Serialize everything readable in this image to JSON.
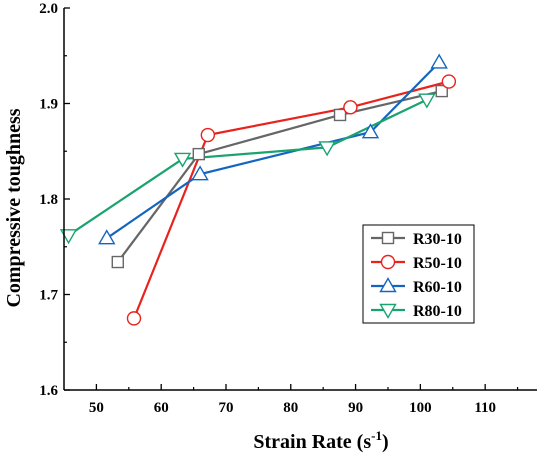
{
  "chart_data": {
    "type": "line",
    "title": "",
    "xlabel": "Strain Rate (s",
    "xlabel_sup": "-1",
    "xlabel_tail": ")",
    "ylabel": "Compressive toughness",
    "xlim": [
      45,
      118
    ],
    "ylim": [
      1.6,
      2.0
    ],
    "xticks": [
      50,
      60,
      70,
      80,
      90,
      100,
      110
    ],
    "yticks": [
      1.6,
      1.7,
      1.8,
      1.9,
      2.0
    ],
    "xtick_labels": [
      "50",
      "60",
      "70",
      "80",
      "90",
      "100",
      "110"
    ],
    "ytick_labels": [
      "1.6",
      "1.7",
      "1.8",
      "1.9",
      "2.0"
    ],
    "grid": false,
    "legend_position": "lower-right",
    "series": [
      {
        "name": "R30-10",
        "color": "#666666",
        "marker": "square",
        "x": [
          53.3,
          65.8,
          87.6,
          103.3
        ],
        "y": [
          1.734,
          1.847,
          1.888,
          1.913
        ]
      },
      {
        "name": "R50-10",
        "color": "#e8231e",
        "marker": "circle",
        "x": [
          55.8,
          67.2,
          89.2,
          104.4
        ],
        "y": [
          1.675,
          1.867,
          1.896,
          1.923
        ]
      },
      {
        "name": "R60-10",
        "color": "#1565c0",
        "marker": "triangle-up",
        "x": [
          51.6,
          66.0,
          92.3,
          102.9
        ],
        "y": [
          1.759,
          1.826,
          1.87,
          1.943
        ]
      },
      {
        "name": "R80-10",
        "color": "#1aa36f",
        "marker": "triangle-down",
        "x": [
          45.7,
          63.3,
          85.6,
          101.0
        ],
        "y": [
          1.762,
          1.842,
          1.854,
          1.904
        ]
      }
    ]
  }
}
